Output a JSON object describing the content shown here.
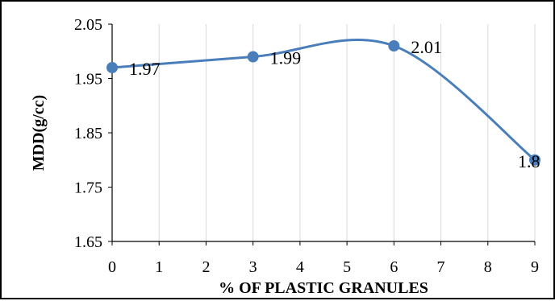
{
  "chart_data": {
    "type": "line",
    "smooth": true,
    "title": "",
    "xlabel": "% OF PLASTIC GRANULES",
    "ylabel": "MDD(g/cc)",
    "x": [
      0,
      3,
      6,
      9
    ],
    "y": [
      1.97,
      1.99,
      2.01,
      1.8
    ],
    "data_labels": [
      "1.97",
      "1.99",
      "2.01",
      "1.8"
    ],
    "xlim": [
      0,
      9
    ],
    "ylim": [
      1.65,
      2.05
    ],
    "x_ticks": [
      "0",
      "1",
      "2",
      "3",
      "4",
      "5",
      "6",
      "7",
      "8",
      "9"
    ],
    "y_ticks": [
      "1.65",
      "1.75",
      "1.85",
      "1.95",
      "2.05"
    ],
    "grid": "vertical",
    "legend": "none",
    "series_color": "#4a7ebb",
    "grid_color": "#d9d9d9",
    "axis_color": "#000000"
  }
}
